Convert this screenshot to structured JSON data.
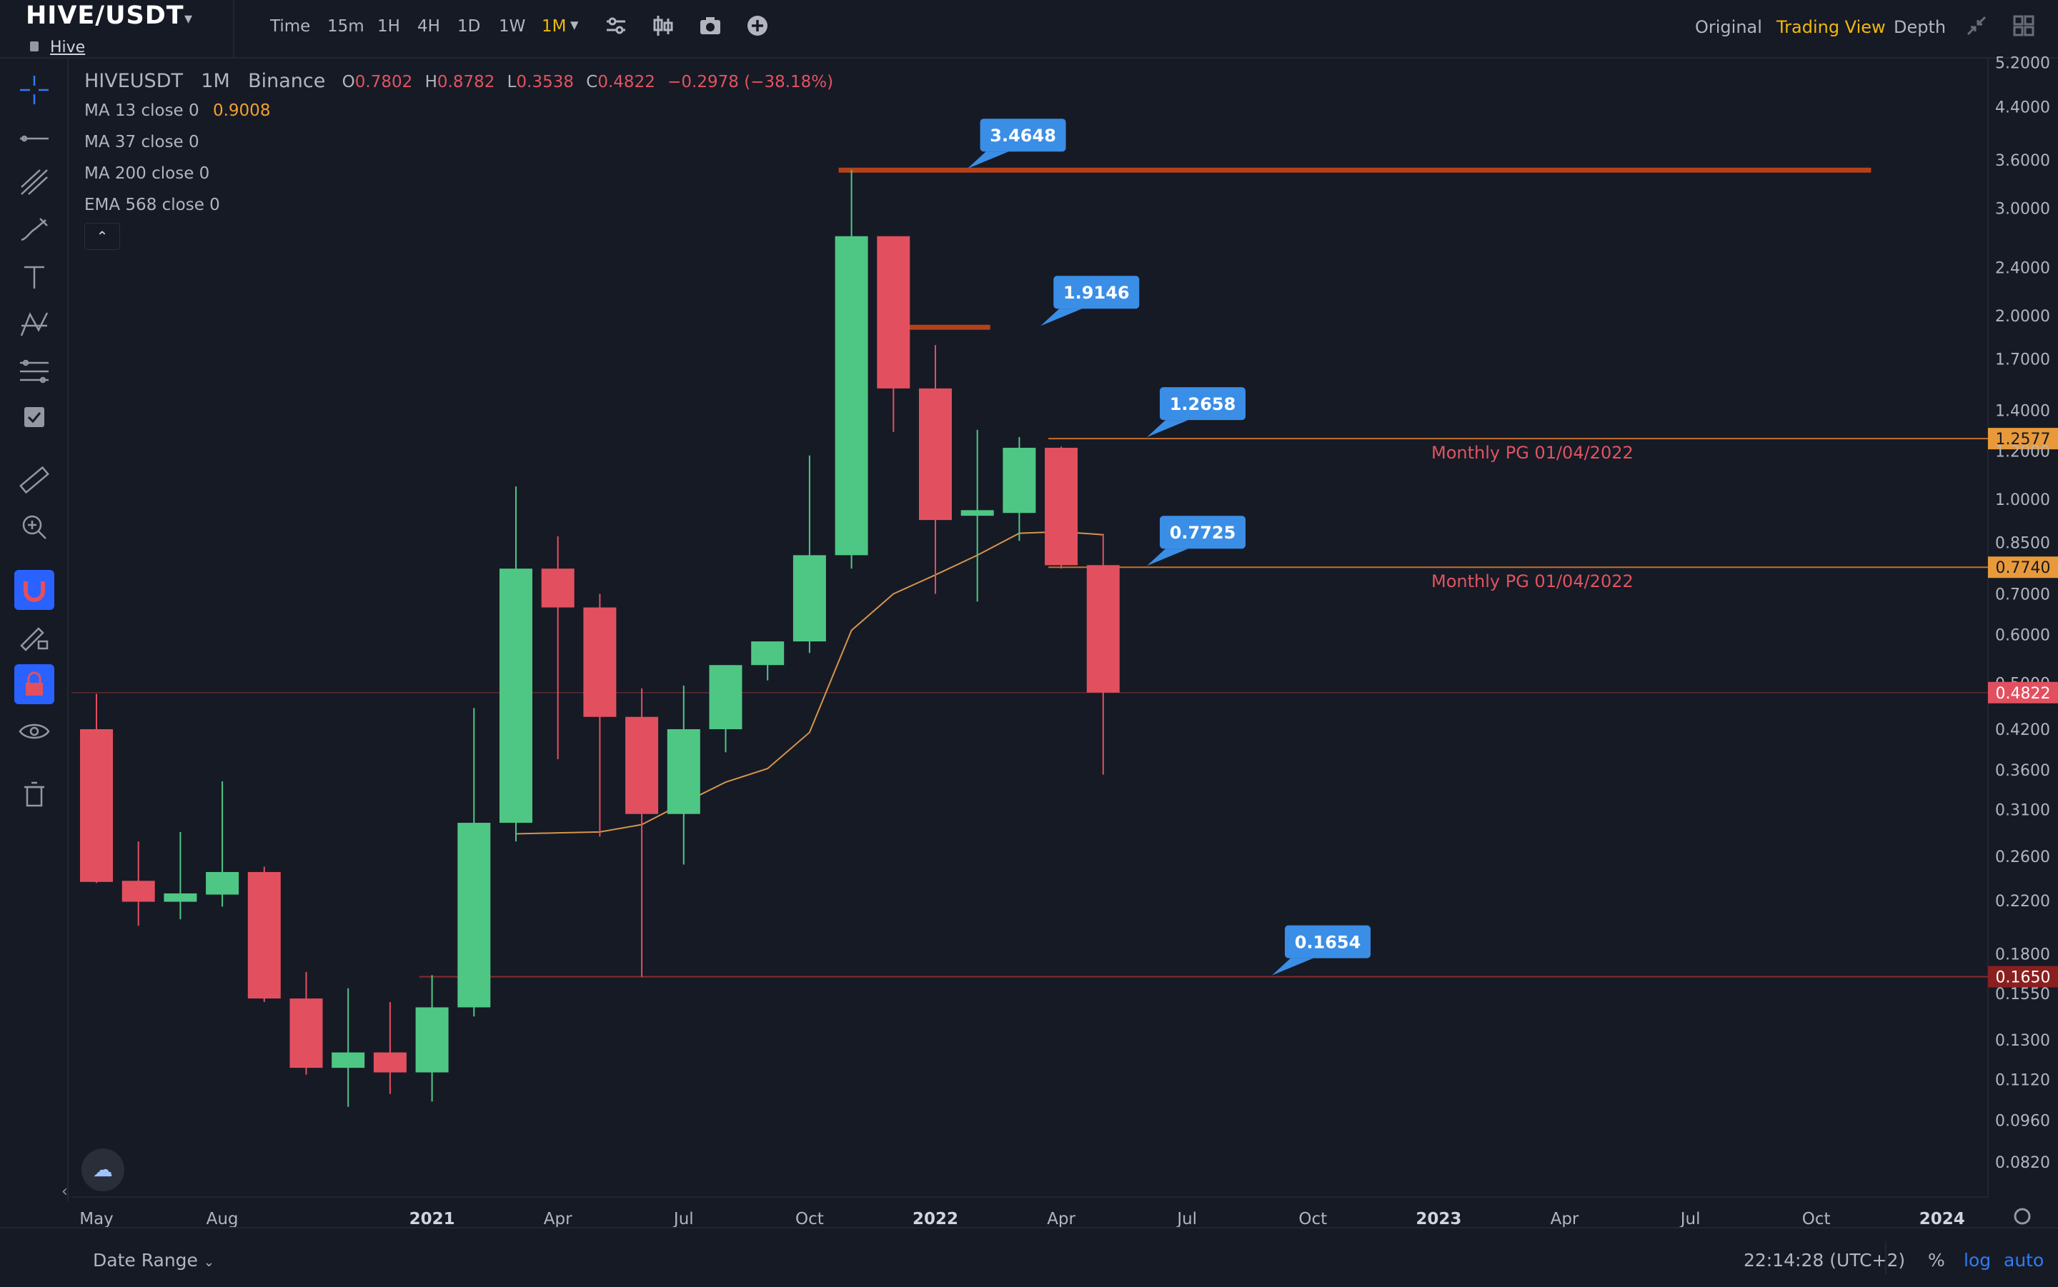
{
  "header": {
    "pair": "HIVE/USDT",
    "sub_label": "Hive",
    "timeframes": [
      {
        "label": "Time",
        "active": false
      },
      {
        "label": "15m",
        "active": false
      },
      {
        "label": "1H",
        "active": false
      },
      {
        "label": "4H",
        "active": false
      },
      {
        "label": "1D",
        "active": false
      },
      {
        "label": "1W",
        "active": false
      },
      {
        "label": "1M",
        "active": true
      }
    ],
    "icons": [
      "settings-sliders-icon",
      "candlestick-type-icon",
      "camera-icon",
      "add-indicator-icon"
    ],
    "view_tabs": [
      {
        "label": "Original",
        "active": false
      },
      {
        "label": "Trading View",
        "active": true
      },
      {
        "label": "Depth",
        "active": false
      }
    ]
  },
  "legend": {
    "symbol": "HIVEUSDT",
    "interval": "1M",
    "exchange": "Binance",
    "o_label": "O",
    "o": "0.7802",
    "h_label": "H",
    "h": "0.8782",
    "l_label": "L",
    "l": "0.3538",
    "c_label": "C",
    "c": "0.4822",
    "change": "−0.2978 (−38.18%)",
    "indicators": [
      {
        "label": "MA 13 close 0",
        "value": "0.9008"
      },
      {
        "label": "MA 37 close 0",
        "value": ""
      },
      {
        "label": "MA 200 close 0",
        "value": ""
      },
      {
        "label": "EMA 568 close 0",
        "value": ""
      }
    ]
  },
  "toolbar_left": [
    "crosshair-icon",
    "trend-line-icon",
    "pitchfork-icon",
    "brush-icon",
    "text-icon",
    "pattern-icon",
    "fib-icon",
    "check-icon",
    "ruler-icon",
    "zoom-icon",
    "magnet-icon",
    "lock-drawing-icon",
    "lock-icon",
    "eye-icon",
    "trash-icon"
  ],
  "colors": {
    "background": "#161a25",
    "up": "#4fc784",
    "down": "#e2505f",
    "ma": "#d6954a",
    "level_thick": "#b5411a",
    "level_thin": "#c76f2f",
    "callout": "#3a8ee6",
    "accent": "#f0b90b"
  },
  "chart_data": {
    "type": "candlestick",
    "y_scale": "log",
    "y_ticks": [
      "5.2000",
      "4.4000",
      "3.6000",
      "3.0000",
      "2.4000",
      "2.0000",
      "1.7000",
      "1.4000",
      "1.2000",
      "1.0000",
      "0.8500",
      "0.7000",
      "0.6000",
      "0.5000",
      "0.4200",
      "0.3600",
      "0.3100",
      "0.2600",
      "0.2200",
      "0.1800",
      "0.1550",
      "0.1300",
      "0.1120",
      "0.0960",
      "0.0820"
    ],
    "x_ticks": [
      "May",
      "Aug",
      "2021",
      "Apr",
      "Jul",
      "Oct",
      "2022",
      "Apr",
      "Jul",
      "Oct",
      "2023",
      "Apr",
      "Jul",
      "Oct",
      "2024"
    ],
    "bold_x_ticks": [
      "2021",
      "2022",
      "2023",
      "2024"
    ],
    "candles": [
      {
        "t": "2020-05",
        "o": 0.42,
        "h": 0.48,
        "l": 0.235,
        "c": 0.236
      },
      {
        "t": "2020-06",
        "o": 0.237,
        "h": 0.275,
        "l": 0.2,
        "c": 0.219
      },
      {
        "t": "2020-07",
        "o": 0.219,
        "h": 0.285,
        "l": 0.205,
        "c": 0.226
      },
      {
        "t": "2020-08",
        "o": 0.225,
        "h": 0.345,
        "l": 0.215,
        "c": 0.245
      },
      {
        "t": "2020-09",
        "o": 0.245,
        "h": 0.25,
        "l": 0.15,
        "c": 0.152
      },
      {
        "t": "2020-10",
        "o": 0.152,
        "h": 0.168,
        "l": 0.114,
        "c": 0.117
      },
      {
        "t": "2020-11",
        "o": 0.117,
        "h": 0.158,
        "l": 0.101,
        "c": 0.124
      },
      {
        "t": "2020-12",
        "o": 0.124,
        "h": 0.15,
        "l": 0.106,
        "c": 0.115
      },
      {
        "t": "2021-01",
        "o": 0.115,
        "h": 0.166,
        "l": 0.103,
        "c": 0.147
      },
      {
        "t": "2021-02",
        "o": 0.147,
        "h": 0.455,
        "l": 0.142,
        "c": 0.295
      },
      {
        "t": "2021-03",
        "o": 0.295,
        "h": 1.05,
        "l": 0.275,
        "c": 0.77
      },
      {
        "t": "2021-04",
        "o": 0.77,
        "h": 0.87,
        "l": 0.375,
        "c": 0.665
      },
      {
        "t": "2021-05",
        "o": 0.665,
        "h": 0.7,
        "l": 0.28,
        "c": 0.44
      },
      {
        "t": "2021-06",
        "o": 0.44,
        "h": 0.49,
        "l": 0.165,
        "c": 0.305
      },
      {
        "t": "2021-07",
        "o": 0.305,
        "h": 0.495,
        "l": 0.252,
        "c": 0.42
      },
      {
        "t": "2021-08",
        "o": 0.42,
        "h": 0.525,
        "l": 0.385,
        "c": 0.535
      },
      {
        "t": "2021-09",
        "o": 0.535,
        "h": 0.57,
        "l": 0.505,
        "c": 0.585
      },
      {
        "t": "2021-10",
        "o": 0.585,
        "h": 1.18,
        "l": 0.56,
        "c": 0.81
      },
      {
        "t": "2021-11",
        "o": 0.81,
        "h": 3.465,
        "l": 0.77,
        "c": 2.7
      },
      {
        "t": "2021-12",
        "o": 2.7,
        "h": 2.7,
        "l": 1.29,
        "c": 1.52
      },
      {
        "t": "2022-01",
        "o": 1.52,
        "h": 1.79,
        "l": 0.7,
        "c": 0.925
      },
      {
        "t": "2022-02",
        "o": 0.94,
        "h": 1.3,
        "l": 0.68,
        "c": 0.96
      },
      {
        "t": "2022-03",
        "o": 0.95,
        "h": 1.265,
        "l": 0.855,
        "c": 1.215
      },
      {
        "t": "2022-04",
        "o": 1.215,
        "h": 1.22,
        "l": 0.77,
        "c": 0.78
      },
      {
        "t": "2022-05",
        "o": 0.7802,
        "h": 0.8782,
        "l": 0.3538,
        "c": 0.4822
      }
    ],
    "ma_line": [
      {
        "t": "2021-03",
        "v": 0.283
      },
      {
        "t": "2021-04",
        "v": 0.284
      },
      {
        "t": "2021-05",
        "v": 0.285
      },
      {
        "t": "2021-06",
        "v": 0.293
      },
      {
        "t": "2021-07",
        "v": 0.318
      },
      {
        "t": "2021-08",
        "v": 0.344
      },
      {
        "t": "2021-09",
        "v": 0.362
      },
      {
        "t": "2021-10",
        "v": 0.415
      },
      {
        "t": "2021-11",
        "v": 0.61
      },
      {
        "t": "2021-12",
        "v": 0.7
      },
      {
        "t": "2022-01",
        "v": 0.752
      },
      {
        "t": "2022-02",
        "v": 0.81
      },
      {
        "t": "2022-03",
        "v": 0.88
      },
      {
        "t": "2022-04",
        "v": 0.885
      },
      {
        "t": "2022-05",
        "v": 0.875
      }
    ],
    "levels": [
      {
        "price": 3.4648,
        "from": "2021-11",
        "to": "2023-11",
        "style": "thick",
        "label": "3.4648"
      },
      {
        "price": 1.9146,
        "from": "2021-12",
        "to": "2022-02",
        "style": "thick",
        "label": "1.9146"
      },
      {
        "price": 1.2577,
        "from": "2022-04",
        "to": "end",
        "style": "thin",
        "label": "1.2658",
        "axis_label": "1.2577",
        "text": "Monthly PG 01/04/2022"
      },
      {
        "price": 0.774,
        "from": "2022-04",
        "to": "end",
        "style": "thin",
        "label": "0.7725",
        "axis_label": "0.7740",
        "text": "Monthly PG 01/04/2022"
      },
      {
        "price": 0.165,
        "from": "2021-01",
        "to": "end",
        "style": "dark",
        "label": "0.1654",
        "axis_label": "0.1650"
      }
    ],
    "last_price": {
      "price": 0.4822,
      "label": "0.4822"
    }
  },
  "footer": {
    "date_range": "Date Range",
    "clock": "22:14:28 (UTC+2)",
    "percent": "%",
    "log": "log",
    "auto": "auto"
  }
}
